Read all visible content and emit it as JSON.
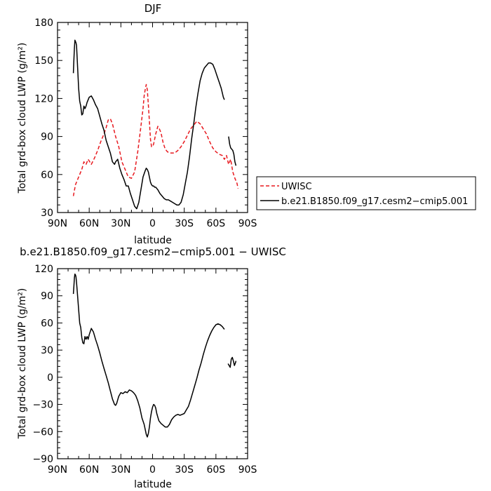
{
  "chart_data": [
    {
      "type": "line",
      "title": "DJF",
      "xlabel": "latitude",
      "ylabel": "Total grd-box cloud LWP (g/m²)",
      "xlim": [
        90,
        -90
      ],
      "ylim": [
        30,
        180
      ],
      "x_tick_values": [
        90,
        60,
        30,
        0,
        -30,
        -60,
        -90
      ],
      "x_tick_labels": [
        "90N",
        "60N",
        "30N",
        "0",
        "30S",
        "60S",
        "90S"
      ],
      "y_ticks": [
        30,
        60,
        90,
        120,
        150,
        180
      ],
      "legend_placement": "right",
      "grid": false,
      "series": [
        {
          "name": "UWISC",
          "color": "#e8191f",
          "dash": "dashed",
          "x": [
            75,
            73,
            70,
            67,
            65,
            63,
            61,
            58,
            55,
            52,
            49,
            46,
            44,
            42,
            40,
            38,
            35,
            32,
            29,
            26,
            23,
            20,
            17,
            14,
            11,
            9,
            8,
            7,
            6,
            5,
            4,
            3,
            2,
            1,
            0,
            -1,
            -2,
            -3,
            -4,
            -5,
            -6,
            -8,
            -10,
            -12,
            -14,
            -16,
            -18,
            -21,
            -24,
            -27,
            -30,
            -33,
            -36,
            -39,
            -42,
            -45,
            -48,
            -51,
            -54,
            -57,
            -60,
            -63,
            -66,
            -68,
            -70,
            -72,
            -74,
            -76,
            -78,
            -80,
            -81
          ],
          "y": [
            43,
            52,
            58,
            64,
            70,
            68,
            72,
            68,
            73,
            79,
            86,
            92,
            97,
            103,
            104,
            100,
            90,
            82,
            70,
            64,
            58,
            57,
            62,
            78,
            98,
            112,
            122,
            127,
            131,
            127,
            115,
            102,
            88,
            82,
            82,
            84,
            88,
            92,
            95,
            98,
            97,
            93,
            85,
            80,
            78,
            77,
            77,
            77,
            79,
            82,
            86,
            91,
            96,
            99,
            102,
            100,
            96,
            92,
            86,
            81,
            78,
            76,
            75,
            72,
            75,
            68,
            72,
            62,
            57,
            53,
            49
          ]
        },
        {
          "name": "b.e21.B1850.f09_g17.cesm2−cmip5.001",
          "color": "#000000",
          "dash": "solid",
          "segments": [
            {
              "x": [
                75,
                74.5,
                74,
                73.5,
                73,
                72.5,
                72,
                71,
                70,
                69,
                68,
                67,
                66,
                65,
                64,
                63,
                62,
                61,
                60,
                58,
                56,
                54,
                52,
                50,
                48,
                46,
                44,
                42,
                40,
                38,
                36,
                35,
                33,
                31,
                29,
                27,
                25,
                23,
                21,
                19,
                17,
                15,
                13,
                11,
                9,
                7,
                6,
                5,
                4,
                3,
                2,
                1,
                0,
                -1,
                -2,
                -3,
                -4,
                -5,
                -7,
                -9,
                -11,
                -13,
                -15,
                -17,
                -19,
                -21,
                -23,
                -25,
                -27,
                -29,
                -31,
                -33,
                -35,
                -37,
                -39,
                -41,
                -43,
                -45,
                -47,
                -49,
                -51,
                -53,
                -55,
                -57,
                -59,
                -61,
                -63,
                -65,
                -67,
                -68
              ],
              "y": [
                140,
                150,
                160,
                166,
                165,
                164,
                162,
                145,
                128,
                118,
                114,
                107,
                108,
                114,
                112,
                114,
                117,
                119,
                121,
                122,
                119,
                115,
                112,
                106,
                100,
                95,
                87,
                82,
                77,
                70,
                68,
                70,
                72,
                65,
                60,
                56,
                51,
                51,
                45,
                40,
                35,
                33,
                38,
                48,
                58,
                63,
                65,
                64,
                62,
                58,
                54,
                52,
                51,
                51,
                50,
                50,
                49,
                48,
                45,
                43,
                41,
                40,
                40,
                39,
                38,
                37,
                36,
                36,
                38,
                44,
                53,
                62,
                74,
                88,
                100,
                113,
                124,
                134,
                140,
                144,
                146,
                148,
                148,
                147,
                143,
                138,
                133,
                128,
                121,
                119
              ]
            },
            {
              "x": [
                -72,
                -73,
                -74,
                -75,
                -76,
                -77,
                -78,
                -79
              ],
              "y": [
                90,
                84,
                81,
                80,
                79,
                76,
                70,
                67
              ]
            }
          ]
        }
      ]
    },
    {
      "type": "line",
      "title": "b.e21.B1850.f09_g17.cesm2−cmip5.001 − UWISC",
      "xlabel": "latitude",
      "ylabel": "Total grd-box cloud LWP (g/m²)",
      "xlim": [
        90,
        -90
      ],
      "ylim": [
        -90,
        120
      ],
      "x_tick_values": [
        90,
        60,
        30,
        0,
        -30,
        -60,
        -90
      ],
      "x_tick_labels": [
        "90N",
        "60N",
        "30N",
        "0",
        "30S",
        "60S",
        "90S"
      ],
      "y_ticks": [
        -90,
        -60,
        -30,
        0,
        30,
        60,
        90,
        120
      ],
      "grid": false,
      "series": [
        {
          "color": "#000000",
          "dash": "solid",
          "segments": [
            {
              "x": [
                75,
                74.5,
                74,
                73.5,
                73,
                72.5,
                72,
                71,
                70,
                69,
                68,
                67,
                66,
                65,
                64,
                63,
                62,
                61,
                60,
                58,
                56,
                54,
                52,
                50,
                48,
                46,
                44,
                42,
                40,
                38,
                36,
                35,
                34,
                33,
                32,
                31,
                30,
                28,
                26,
                24,
                22,
                20,
                18,
                16,
                14,
                12,
                10,
                8,
                6,
                5,
                4,
                3,
                2,
                1,
                0,
                -1,
                -2,
                -3,
                -4,
                -6,
                -8,
                -10,
                -12,
                -14,
                -16,
                -18,
                -20,
                -22,
                -24,
                -26,
                -28,
                -30,
                -32,
                -34,
                -36,
                -38,
                -40,
                -42,
                -44,
                -46,
                -48,
                -50,
                -52,
                -54,
                -56,
                -58,
                -60,
                -62,
                -64,
                -66,
                -68
              ],
              "y": [
                92,
                100,
                110,
                114,
                113,
                111,
                105,
                90,
                75,
                60,
                55,
                44,
                38,
                37,
                45,
                42,
                45,
                42,
                47,
                54,
                50,
                42,
                35,
                27,
                18,
                10,
                2,
                -6,
                -15,
                -24,
                -30,
                -31,
                -29,
                -25,
                -21,
                -19,
                -17,
                -18,
                -16,
                -17,
                -14,
                -15,
                -17,
                -20,
                -26,
                -34,
                -45,
                -52,
                -63,
                -66,
                -62,
                -55,
                -45,
                -38,
                -33,
                -30,
                -31,
                -34,
                -40,
                -48,
                -51,
                -53,
                -55,
                -55,
                -52,
                -47,
                -44,
                -42,
                -41,
                -42,
                -41,
                -40,
                -36,
                -32,
                -25,
                -17,
                -9,
                -1,
                8,
                16,
                25,
                33,
                40,
                46,
                51,
                55,
                58,
                59,
                58,
                56,
                53
              ]
            },
            {
              "x": [
                -71.5,
                -72.5,
                -73.5,
                -74.5,
                -75.5,
                -76.5,
                -77.5,
                -78.5,
                -79
              ],
              "y": [
                15,
                13,
                11,
                20,
                22,
                18,
                13,
                16,
                18
              ]
            }
          ]
        }
      ]
    },
    {
      "legend": [
        {
          "label": "UWISC",
          "color": "#e8191f",
          "dash": "dashed"
        },
        {
          "label": "b.e21.B1850.f09_g17.cesm2−cmip5.001",
          "color": "#000000",
          "dash": "solid"
        }
      ]
    }
  ]
}
